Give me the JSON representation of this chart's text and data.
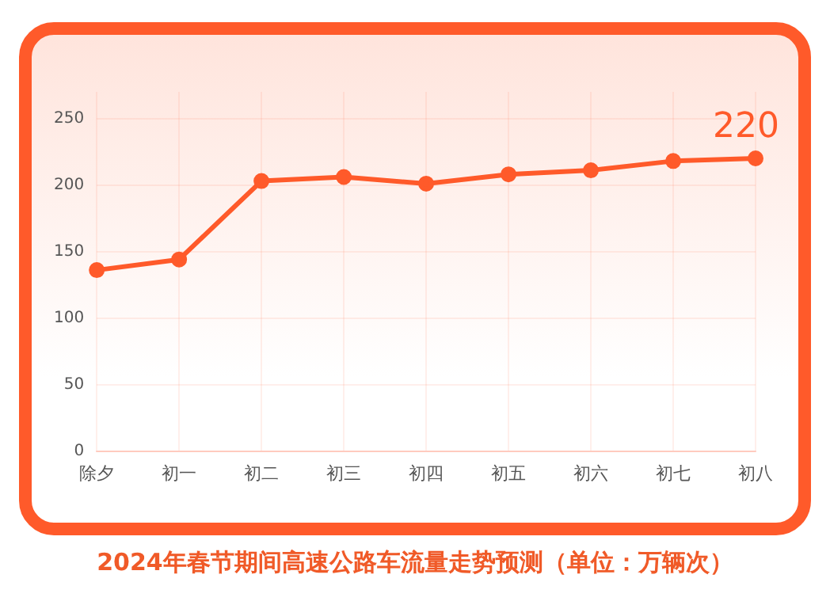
{
  "chart_data": {
    "type": "line",
    "title": "2024年春节期间高速公路车流量走势预测（单位：万辆次）",
    "categories": [
      "除夕",
      "初一",
      "初二",
      "初三",
      "初四",
      "初五",
      "初六",
      "初七",
      "初八"
    ],
    "series": [
      {
        "color": "#ff5a2a",
        "values": [
          136,
          144,
          203,
          206,
          201,
          208,
          211,
          218,
          220
        ],
        "value_labels": [
          null,
          null,
          null,
          null,
          null,
          null,
          null,
          null,
          "220"
        ]
      }
    ],
    "ylim": [
      0,
      270
    ],
    "yticks": [
      0,
      50,
      100,
      150,
      200,
      250
    ],
    "grid": true,
    "legend": false,
    "marker": "circle",
    "line_style": "solid"
  }
}
